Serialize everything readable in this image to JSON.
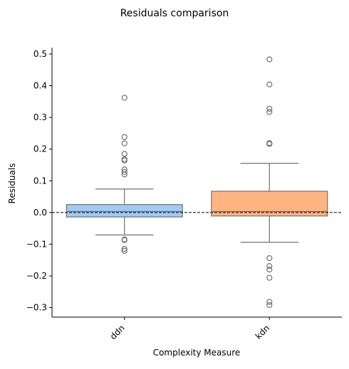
{
  "chart_data": {
    "type": "box",
    "title": "Residuals comparison",
    "xlabel": "Complexity Measure",
    "ylabel": "Residuals",
    "ylim": [
      -0.33,
      0.52
    ],
    "yticks": [
      -0.3,
      -0.2,
      -0.1,
      0.0,
      0.1,
      0.2,
      0.3,
      0.4,
      0.5
    ],
    "ytick_labels": [
      "−0.3",
      "−0.2",
      "−0.1",
      "0.0",
      "0.1",
      "0.2",
      "0.3",
      "0.4",
      "0.5"
    ],
    "categories": [
      "ddn",
      "kdn"
    ],
    "reference_line": {
      "y": 0.0,
      "style": "dashed",
      "color": "#000000"
    },
    "grid": false,
    "boxes": [
      {
        "category": "ddn",
        "color": "#a1c9f4",
        "whisker_low": -0.071,
        "q1": -0.014,
        "median": 0.003,
        "q3": 0.025,
        "whisker_high": 0.074,
        "outliers": [
          0.362,
          0.238,
          0.218,
          0.185,
          0.168,
          0.164,
          0.136,
          0.128,
          0.12,
          -0.085,
          -0.087,
          -0.115,
          -0.121
        ]
      },
      {
        "category": "kdn",
        "color": "#ffb482",
        "whisker_low": -0.094,
        "q1": -0.011,
        "median": 0.003,
        "q3": 0.067,
        "whisker_high": 0.155,
        "outliers": [
          0.483,
          0.404,
          0.327,
          0.317,
          0.219,
          0.216,
          -0.144,
          -0.169,
          -0.18,
          -0.206,
          -0.282,
          -0.292
        ]
      }
    ]
  }
}
